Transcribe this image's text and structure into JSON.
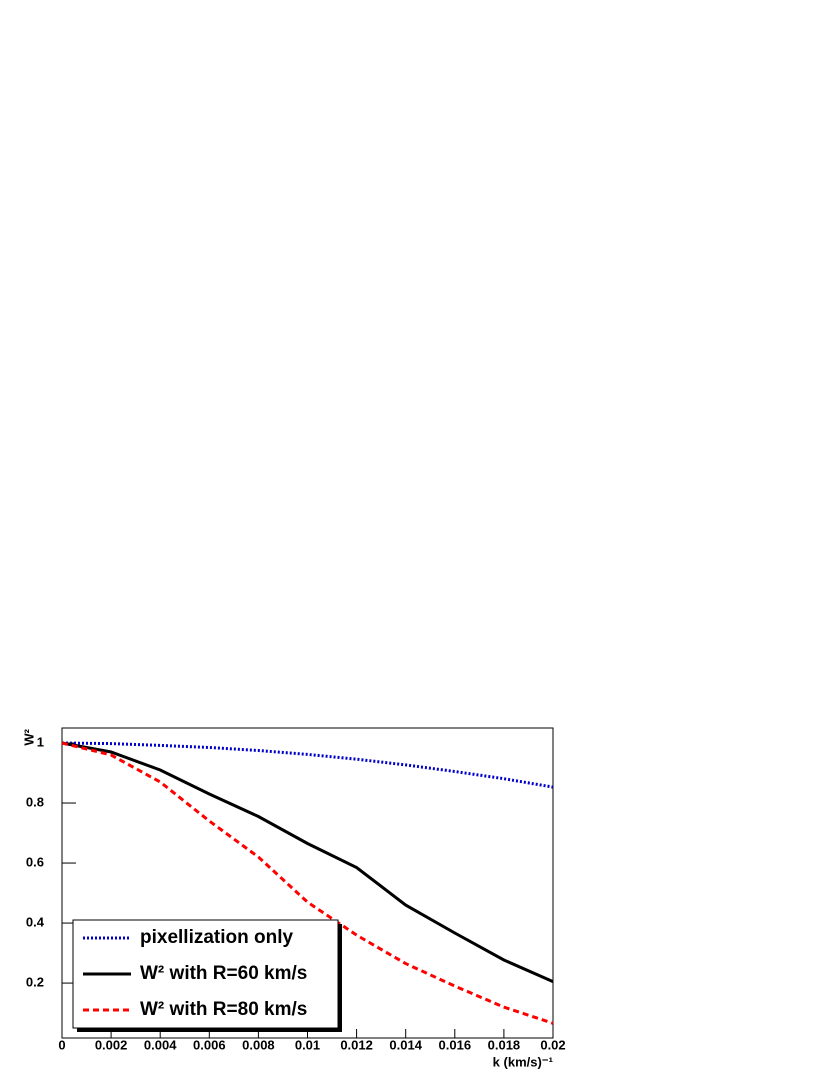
{
  "chart_data": {
    "type": "line",
    "xlabel": "k  (km/s)⁻¹",
    "ylabel": "W²",
    "x": [
      0,
      0.002,
      0.004,
      0.006,
      0.008,
      0.01,
      0.012,
      0.014,
      0.016,
      0.018,
      0.02
    ],
    "series": [
      {
        "name": "pixellization only",
        "color": "#0000cc",
        "style": "dotted",
        "values": [
          1,
          0.998,
          0.992,
          0.985,
          0.975,
          0.962,
          0.946,
          0.927,
          0.905,
          0.881,
          0.853
        ]
      },
      {
        "name": "W² with R=60 km/s",
        "color": "#000000",
        "style": "solid",
        "values": [
          1,
          0.97,
          0.91,
          0.83,
          0.755,
          0.665,
          0.585,
          0.46,
          0.367,
          0.277,
          0.205
        ]
      },
      {
        "name": "W² with R=80 km/s",
        "color": "#ff0000",
        "style": "dashed",
        "values": [
          1,
          0.96,
          0.87,
          0.74,
          0.62,
          0.47,
          0.36,
          0.265,
          0.19,
          0.12,
          0.066
        ]
      }
    ],
    "xlim": [
      0,
      0.02
    ],
    "ylim": [
      0.017,
      1.05
    ],
    "xticks": [
      0,
      0.002,
      0.004,
      0.006,
      0.008,
      0.01,
      0.012,
      0.014,
      0.016,
      0.018,
      0.02
    ],
    "yticks": [
      0.2,
      0.4,
      0.6,
      0.8,
      1
    ],
    "grid": false,
    "legend": "lower left"
  }
}
